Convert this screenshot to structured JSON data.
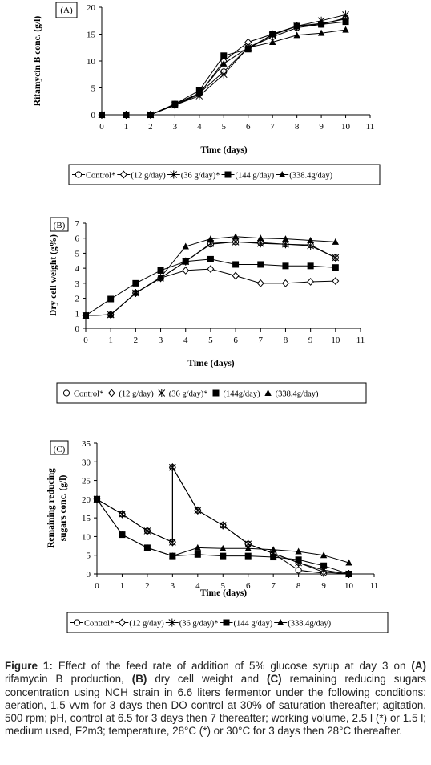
{
  "charts": [
    {
      "panel_label": "(A)",
      "xlabel": "Time (days)",
      "ylabel": [
        "Rifamycin B conc. (g/l)"
      ],
      "x_ticks": [
        "0",
        "1",
        "2",
        "3",
        "4",
        "5",
        "6",
        "7",
        "8",
        "9",
        "10",
        "11"
      ],
      "y_ticks": [
        "0",
        "5",
        "10",
        "15",
        "20"
      ],
      "legend": [
        "Control*",
        "(12 g/day)",
        "(36 g/day)*",
        "(144 g/day)",
        "(338.4g/day)"
      ]
    },
    {
      "panel_label": "(B)",
      "xlabel": "Time (days)",
      "ylabel": [
        "Dry cell weight (g%)"
      ],
      "x_ticks": [
        "0",
        "1",
        "2",
        "3",
        "4",
        "5",
        "6",
        "7",
        "8",
        "9",
        "10",
        "11"
      ],
      "y_ticks": [
        "0",
        "1",
        "2",
        "3",
        "4",
        "5",
        "6",
        "7"
      ],
      "legend": [
        "Control*",
        "(12 g/day)",
        "(36 g/day)*",
        "(144g/day)",
        "(338.4g/day)"
      ]
    },
    {
      "panel_label": "(C)",
      "xlabel": "Time (days)",
      "ylabel": [
        "Remaining reducing",
        "sugars conc. (g/l)"
      ],
      "x_ticks": [
        "0",
        "1",
        "2",
        "3",
        "4",
        "5",
        "6",
        "7",
        "8",
        "9",
        "10",
        "11"
      ],
      "y_ticks": [
        "0",
        "5",
        "10",
        "15",
        "20",
        "25",
        "30",
        "35"
      ],
      "legend": [
        "Control*",
        "(12 g/day)",
        "(36 g/day)*",
        "(144 g/day)",
        "(338.4g/day)"
      ]
    }
  ],
  "caption": {
    "label": "Figure 1:",
    "t1": " Effect of the feed rate of addition of 5% glucose syrup at day 3 on ",
    "a": "(A)",
    "t2": " rifamycin B  production, ",
    "b": "(B)",
    "t3": " dry cell weight and ",
    "c": "(C)",
    "t4": " remaining reducing sugars concentration using NCH strain in 6.6 liters fermentor under the following conditions: aeration, 1.5 vvm for 3 days then DO control at 30% of saturation thereafter; agitation, 500 rpm; pH, control at 6.5 for 3 days then 7 thereafter; working volume, 2.5 l (*) or 1.5 l; medium used, F2m3; temperature, 28°C (*) or 30°C for 3 days then 28°C thereafter."
  },
  "chart_data": [
    {
      "type": "line",
      "title": "",
      "xlabel": "Time (days)",
      "ylabel": "Rifamycin B conc. (g/l)",
      "xlim": [
        0,
        11
      ],
      "ylim": [
        0,
        20
      ],
      "x": [
        0,
        1,
        2,
        3,
        4,
        5,
        6,
        7,
        8,
        9,
        10
      ],
      "series": [
        {
          "name": "Control*",
          "marker": "circle",
          "values": [
            0,
            0,
            0,
            2.0,
            4.0,
            8.0,
            12.5,
            14.5,
            16.2,
            16.8,
            18.0
          ]
        },
        {
          "name": "(12 g/day)",
          "marker": "diamond",
          "values": [
            0,
            0,
            0,
            1.8,
            3.8,
            10.0,
            13.5,
            15.0,
            16.5,
            17.0,
            17.8
          ]
        },
        {
          "name": "(36 g/day)*",
          "marker": "asterisk",
          "values": [
            0,
            0,
            0,
            1.8,
            3.5,
            7.5,
            12.5,
            14.8,
            16.5,
            17.5,
            18.6
          ]
        },
        {
          "name": "(144 g/day)",
          "marker": "square",
          "values": [
            0,
            0,
            0,
            2.0,
            4.5,
            11.0,
            12.2,
            15.0,
            16.5,
            16.8,
            17.3
          ]
        },
        {
          "name": "(338.4g/day)",
          "marker": "triangle",
          "values": [
            0,
            0,
            0,
            1.8,
            4.0,
            9.5,
            12.5,
            13.5,
            14.8,
            15.2,
            15.8
          ]
        }
      ]
    },
    {
      "type": "line",
      "title": "",
      "xlabel": "Time (days)",
      "ylabel": "Dry cell weight (g%)",
      "xlim": [
        0,
        11
      ],
      "ylim": [
        0,
        7
      ],
      "x": [
        0,
        1,
        2,
        3,
        4,
        5,
        6,
        7,
        8,
        9,
        10
      ],
      "series": [
        {
          "name": "Control*",
          "marker": "circle",
          "values": [
            0.85,
            0.9,
            2.35,
            3.35,
            4.45,
            5.6,
            5.75,
            5.7,
            5.6,
            5.55,
            4.7
          ]
        },
        {
          "name": "(12 g/day)",
          "marker": "diamond",
          "values": [
            0.85,
            0.9,
            2.35,
            3.35,
            3.85,
            3.95,
            3.5,
            3.0,
            3.0,
            3.1,
            3.15
          ]
        },
        {
          "name": "(36 g/day)*",
          "marker": "asterisk",
          "values": [
            0.85,
            0.9,
            2.35,
            3.35,
            4.45,
            5.65,
            5.75,
            5.65,
            5.6,
            5.5,
            4.7
          ]
        },
        {
          "name": "(144g/day)",
          "marker": "square",
          "values": [
            0.85,
            1.95,
            3.0,
            3.85,
            4.45,
            4.6,
            4.25,
            4.25,
            4.15,
            4.15,
            4.05
          ]
        },
        {
          "name": "(338.4g/day)",
          "marker": "triangle",
          "values": [
            0.85,
            0.9,
            2.35,
            3.4,
            5.45,
            5.95,
            6.1,
            6.0,
            5.95,
            5.85,
            5.75
          ]
        }
      ]
    },
    {
      "type": "line",
      "title": "",
      "xlabel": "Time (days)",
      "ylabel": "Remaining reducing sugars conc. (g/l)",
      "xlim": [
        0,
        11
      ],
      "ylim": [
        0,
        35
      ],
      "x": [
        0,
        1,
        2,
        3,
        3,
        4,
        5,
        6,
        7,
        8,
        9,
        10
      ],
      "series": [
        {
          "name": "Control*",
          "marker": "circle",
          "values": [
            20.0,
            16.0,
            11.5,
            8.5,
            28.5,
            17.0,
            13.0,
            8.0,
            5.5,
            1.0,
            0.2,
            null
          ]
        },
        {
          "name": "(12 g/day)",
          "marker": "diamond",
          "values": [
            20.0,
            16.0,
            11.5,
            8.5,
            28.5,
            17.0,
            13.0,
            8.0,
            5.5,
            3.0,
            0.5,
            0.0
          ]
        },
        {
          "name": "(36 g/day)*",
          "marker": "asterisk",
          "values": [
            20.0,
            16.0,
            11.5,
            8.5,
            28.5,
            17.0,
            13.0,
            8.0,
            5.5,
            3.0,
            1.0,
            0.0
          ]
        },
        {
          "name": "(144 g/day)",
          "marker": "square",
          "values": [
            20.0,
            10.5,
            7.0,
            4.8,
            null,
            5.2,
            4.8,
            4.8,
            4.5,
            3.8,
            2.2,
            0.0
          ]
        },
        {
          "name": "(338.4g/day)",
          "marker": "triangle",
          "values": [
            20.0,
            10.5,
            7.0,
            4.8,
            null,
            7.0,
            6.8,
            6.8,
            6.5,
            6.0,
            5.0,
            3.0
          ]
        }
      ]
    }
  ]
}
